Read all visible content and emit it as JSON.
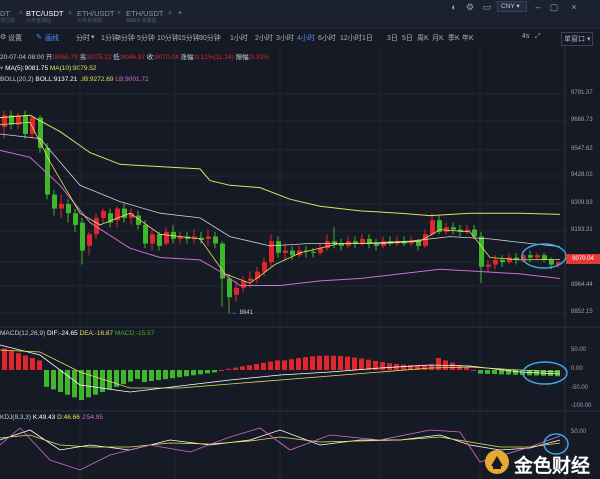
{
  "tabs": [
    {
      "title": "DT",
      "sub": "日行情"
    },
    {
      "title": "BTC/USDT",
      "sub": "火币全球站"
    },
    {
      "title": "ETH/USDT",
      "sub": "火币全球站"
    },
    {
      "title": "ETH/USDT",
      "sub": "AMEX 全球站"
    }
  ],
  "currency": "CNY",
  "toolbar": {
    "settings": "设置",
    "indicator": "画线",
    "timeshare": "分时",
    "periods": [
      "1分钟",
      "3分钟",
      "5分钟",
      "10分钟",
      "15分钟",
      "30分钟",
      "1小时",
      "2小时",
      "3小时",
      "4小时",
      "6小时",
      "12小时",
      "1日",
      "3日",
      "5日",
      "周K",
      "月K",
      "季K",
      "年K"
    ],
    "active_period": "4小时",
    "right_items": [
      "4s",
      "单窗口"
    ]
  },
  "main_info": {
    "date": "20-07-04 08:00",
    "open_label": "开:",
    "open": "9058.79",
    "high_label": "高:",
    "high": "9075.22",
    "low_label": "低:",
    "low": "9046.97",
    "close_label": "收:",
    "close": "9070.04",
    "change_label": "涨幅:",
    "change": "0.12%(11.24)",
    "amp_label": "振幅:",
    "amp": "0.31%",
    "ma5": "MA(5):9081.75",
    "ma10": "MA(10):9079.52",
    "boll": "BOLL(20,2)",
    "boll_mid": "BOLL:9137.21",
    "boll_ub": "UB:9272.69",
    "boll_lb": "LB:9001.72"
  },
  "price_axis": [
    "9791.37",
    "9668.73",
    "9547.62",
    "9428.02",
    "9309.93",
    "9193.31",
    "8964.44",
    "8852.15"
  ],
  "current_price": "9070.04",
  "low_marker": "8841",
  "macd_info": {
    "name": "MACD(12,26,9)",
    "dif": "DIF:-24.65",
    "dea": "DEA:-16.87",
    "macd": "MACD:-15.57"
  },
  "macd_axis": [
    "50.00",
    "0.00",
    "-50.00",
    "-100.00"
  ],
  "kdj_info": {
    "name": "KDJ(9,3,3)",
    "k": "K:49.43",
    "d": "D:46.66",
    "j": "J:54.95"
  },
  "kdj_axis": [
    "50.00"
  ],
  "logo_text": "金色财经",
  "colors": {
    "up": "#e0262c",
    "down": "#3fb62b",
    "ma5": "#ffffff",
    "ma10": "#e6e05a",
    "boll_band": "#d46cd0",
    "boll_mid": "#ffffff",
    "accent": "#4d8dff",
    "highlight": "#3ea6e6"
  }
}
